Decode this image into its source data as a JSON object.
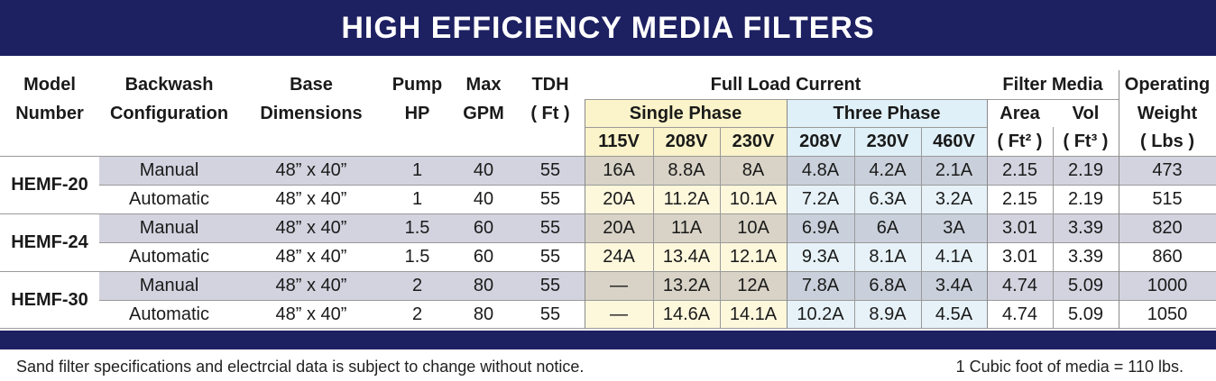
{
  "title": "HIGH EFFICIENCY MEDIA FILTERS",
  "headers": {
    "model": [
      "Model",
      "Number"
    ],
    "backwash": [
      "Backwash",
      "Configuration"
    ],
    "base": [
      "Base",
      "Dimensions"
    ],
    "pump": [
      "Pump",
      "HP"
    ],
    "gpm": [
      "Max",
      "GPM"
    ],
    "tdh": [
      "TDH",
      "( Ft )"
    ],
    "flc": "Full Load Current",
    "single_phase": "Single Phase",
    "three_phase": "Three Phase",
    "filter_media": "Filter Media",
    "area": "Area",
    "vol": "Vol",
    "operating": [
      "Operating",
      "Weight"
    ],
    "volt_single": [
      "115V",
      "208V",
      "230V"
    ],
    "volt_three": [
      "208V",
      "230V",
      "460V"
    ],
    "area_unit": "( Ft² )",
    "vol_unit": "( Ft³ )",
    "weight_unit": "( Lbs )"
  },
  "rows": [
    {
      "model": "HEMF-20",
      "config": "Manual",
      "base": "48” x 40”",
      "hp": "1",
      "gpm": "40",
      "tdh": "55",
      "sp": [
        "16A",
        "8.8A",
        "8A"
      ],
      "tp": [
        "4.8A",
        "4.2A",
        "2.1A"
      ],
      "area": "2.15",
      "vol": "2.19",
      "weight": "473"
    },
    {
      "model": "",
      "config": "Automatic",
      "base": "48” x 40”",
      "hp": "1",
      "gpm": "40",
      "tdh": "55",
      "sp": [
        "20A",
        "11.2A",
        "10.1A"
      ],
      "tp": [
        "7.2A",
        "6.3A",
        "3.2A"
      ],
      "area": "2.15",
      "vol": "2.19",
      "weight": "515"
    },
    {
      "model": "HEMF-24",
      "config": "Manual",
      "base": "48” x 40”",
      "hp": "1.5",
      "gpm": "60",
      "tdh": "55",
      "sp": [
        "20A",
        "11A",
        "10A"
      ],
      "tp": [
        "6.9A",
        "6A",
        "3A"
      ],
      "area": "3.01",
      "vol": "3.39",
      "weight": "820"
    },
    {
      "model": "",
      "config": "Automatic",
      "base": "48” x 40”",
      "hp": "1.5",
      "gpm": "60",
      "tdh": "55",
      "sp": [
        "24A",
        "13.4A",
        "12.1A"
      ],
      "tp": [
        "9.3A",
        "8.1A",
        "4.1A"
      ],
      "area": "3.01",
      "vol": "3.39",
      "weight": "860"
    },
    {
      "model": "HEMF-30",
      "config": "Manual",
      "base": "48” x 40”",
      "hp": "2",
      "gpm": "80",
      "tdh": "55",
      "sp": [
        "—",
        "13.2A",
        "12A"
      ],
      "tp": [
        "7.8A",
        "6.8A",
        "3.4A"
      ],
      "area": "4.74",
      "vol": "5.09",
      "weight": "1000"
    },
    {
      "model": "",
      "config": "Automatic",
      "base": "48” x 40”",
      "hp": "2",
      "gpm": "80",
      "tdh": "55",
      "sp": [
        "—",
        "14.6A",
        "14.1A"
      ],
      "tp": [
        "10.2A",
        "8.9A",
        "4.5A"
      ],
      "area": "4.74",
      "vol": "5.09",
      "weight": "1050"
    }
  ],
  "footnote_left": "Sand filter specifications and electrcial data is subject to change without notice.",
  "footnote_right": "1 Cubic foot of media = 110 lbs.",
  "colors": {
    "banner": "#1d2061",
    "single_phase_header": "#fbf3c9",
    "three_phase_header": "#dff0f8",
    "single_phase_shaded": "#d8d3c6",
    "single_phase_light": "#fdf7dc",
    "three_phase_shaded": "#c9d0db",
    "three_phase_light": "#e6f2f8",
    "shaded_row": "#d3d3e0",
    "light_row": "#ffffff"
  }
}
